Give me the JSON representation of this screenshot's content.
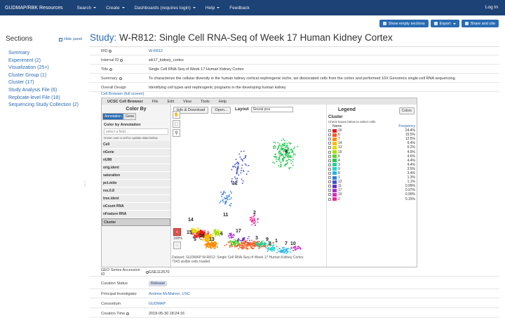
{
  "navbar": {
    "brand": "GUDMAP/RBK Resources",
    "items": [
      {
        "label": "Search",
        "dropdown": true
      },
      {
        "label": "Create",
        "dropdown": true
      },
      {
        "label": "Dashboards (requires login)",
        "dropdown": true
      },
      {
        "label": "Help",
        "dropdown": true
      },
      {
        "label": "Feedback",
        "dropdown": false
      }
    ],
    "login": "Log In"
  },
  "toolbar": {
    "show_empty": "Show empty sections",
    "export": "Export",
    "share": "Share and cite"
  },
  "sidebar": {
    "title": "Sections",
    "hide": "Hide panel",
    "items": [
      "Summary",
      "Experiment (2)",
      "Visualization (25+)",
      "Cluster Group (1)",
      "Cluster (17)",
      "Study Analysis File (6)",
      "Replicate-level File (18)",
      "Sequencing Study Collection (2)"
    ]
  },
  "page": {
    "title_prefix": "Study:",
    "title": "W-R812: Single Cell RNA-Seq of Week 17 Human Kidney Cortex"
  },
  "record": {
    "rid_label": "RID",
    "rid": "W-R812",
    "internal_id_label": "Internal ID",
    "internal_id": "wk17_kidney_cortex",
    "title_label": "Title",
    "title": "Single Cell RNA-Seq of Week 17 Human Kidney Cortex",
    "summary_label": "Summary",
    "summary": "To characterize the cellular diversity in the human kidney cortical nephrogenic niche, we dissociated cells from the cortex and performed 10X Genomics single-cell RNA sequencing.",
    "design_label": "Overall Design",
    "design": "Identifying cell types and nephrogenic programs in the developing human kidney",
    "geo_label": "GEO Series Accession ID",
    "geo": "GSE112570",
    "curation_label": "Curation Status",
    "curation": "Release",
    "pi_label": "Principal Investigator",
    "pi": "Andrew McMahon, USC",
    "consortium_label": "Consortium",
    "consortium": "GUDMAP",
    "created_label": "Creation Time",
    "created": "2018-05-30 18:24:16"
  },
  "cellbrowser": {
    "link": "Cell Browser (full screen)",
    "menu": [
      "UCSC Cell Browser",
      "File",
      "Edit",
      "View",
      "Tools",
      "Help"
    ],
    "color_by": "Color By",
    "tabs": [
      "Annotation",
      "Gene"
    ],
    "color_by_annotation": "Color by Annotation",
    "field_placeholder": "select a field...",
    "hover_hint": "Hover over a cell to update data below",
    "annotations": [
      "Cell",
      "nGene",
      "nUMI",
      "orig.ident",
      "saturation",
      "pct.mito",
      "res.0.8",
      "tree.ident",
      "nCount RNA",
      "nFeature RNA",
      "Cluster"
    ],
    "info_btn": "Info & Download",
    "open_btn": "Open...",
    "layout_label": "Layout",
    "layout_value": "Seurat pca",
    "zoom_level": "100%",
    "dataset": "Dataset: GUDMAP W-R812: Single Cell RNA-Seq of Week 17 Human Kidney Cortex",
    "visible": "7343 visible cells loaded",
    "legend": {
      "title": "Legend",
      "colors_btn": "Colors",
      "cluster": "Cluster",
      "hint": "Check boxes below to select cells",
      "name_head": "Name",
      "freq_head": "Frequency",
      "rows": [
        {
          "name": "16",
          "freq": "24.4%",
          "color": "#e41a1c"
        },
        {
          "name": "6",
          "freq": "19.5%",
          "color": "#ff5a1e"
        },
        {
          "name": "7",
          "freq": "12.5%",
          "color": "#ff8c00"
        },
        {
          "name": "14",
          "freq": "9.4%",
          "color": "#ffb700"
        },
        {
          "name": "13",
          "freq": "6.2%",
          "color": "#e6d800"
        },
        {
          "name": "15",
          "freq": "4.9%",
          "color": "#a8e000"
        },
        {
          "name": "5",
          "freq": "4.6%",
          "color": "#5bd62a"
        },
        {
          "name": "4",
          "freq": "4.4%",
          "color": "#22c94e"
        },
        {
          "name": "3",
          "freq": "4.4%",
          "color": "#1fd29a"
        },
        {
          "name": "9",
          "freq": "3.5%",
          "color": "#20d6d0"
        },
        {
          "name": "8",
          "freq": "3.4%",
          "color": "#23b4ef"
        },
        {
          "name": "1",
          "freq": "1.3%",
          "color": "#2d7fe0"
        },
        {
          "name": "12",
          "freq": "1.1%",
          "color": "#3f4fd6"
        },
        {
          "name": "11",
          "freq": "0.99%",
          "color": "#6a2fd0"
        },
        {
          "name": "17",
          "freq": "0.97%",
          "color": "#a52ed0"
        },
        {
          "name": "10",
          "freq": "0.90%",
          "color": "#d82cc4"
        },
        {
          "name": "2",
          "freq": "0.15%",
          "color": "#f0279a"
        }
      ]
    },
    "plot_labels": [
      "4",
      "2",
      "14",
      "6",
      "17",
      "3",
      "9",
      "1",
      "15",
      "8",
      "7",
      "16",
      "5",
      "13",
      "10",
      "12",
      "11"
    ]
  }
}
